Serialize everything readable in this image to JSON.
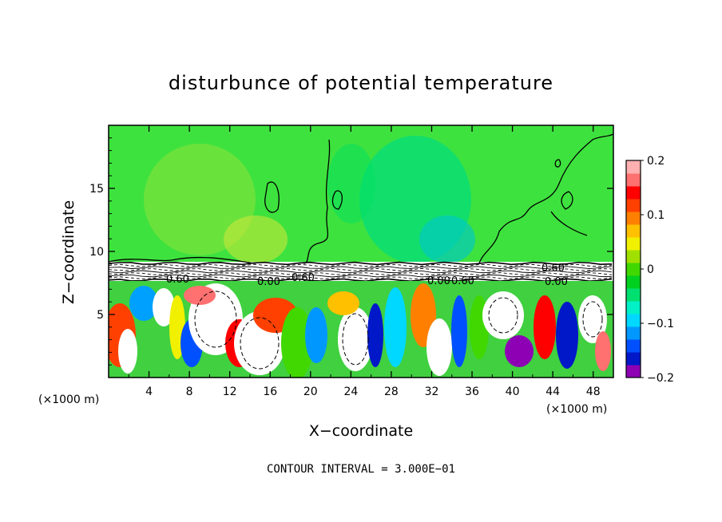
{
  "chart_data": {
    "type": "heatmap",
    "title": "disturbunce of potential temperature",
    "xlabel": "X−coordinate",
    "ylabel": "Z−coordinate",
    "x_unit_label": "(×1000 m)",
    "y_unit_label": "(×1000 m)",
    "xlim": [
      0,
      50
    ],
    "ylim": [
      0,
      20
    ],
    "x_ticks": [
      4,
      8,
      12,
      16,
      20,
      24,
      28,
      32,
      36,
      40,
      44,
      48
    ],
    "y_ticks": [
      5,
      10,
      15
    ],
    "colorbar": {
      "min": -0.2,
      "max": 0.2,
      "ticks": [
        0.2,
        0.1,
        0,
        -0.1,
        -0.2
      ],
      "tick_labels": [
        "0.2",
        "0.1",
        "0",
        "−0.1",
        "−0.2"
      ],
      "colors": [
        "#8e00b4",
        "#0018c8",
        "#0050ff",
        "#0098ff",
        "#00d8ff",
        "#00f0c8",
        "#00e070",
        "#00d020",
        "#40d800",
        "#a0e000",
        "#f0f000",
        "#ffc000",
        "#ff8000",
        "#ff4000",
        "#ff0000",
        "#ff7070",
        "#ffb0b0"
      ]
    },
    "contour_labels": [
      "0.60",
      "0.00",
      "0.60",
      "0.00",
      "0.60",
      "0.60",
      "0.00"
    ],
    "contour_interval_text": "CONTOUR INTERVAL = 3.000E−01",
    "regions": {
      "upper_background_value": 0.02,
      "upper_field_z_range": [
        9,
        20
      ],
      "inversion_band_z_range": [
        7.5,
        9
      ],
      "lower_turbulent_z_range": [
        0,
        7.5
      ]
    }
  },
  "labels": {
    "x_unit": "(×1000 m)",
    "y_unit": "(×1000 m)"
  }
}
